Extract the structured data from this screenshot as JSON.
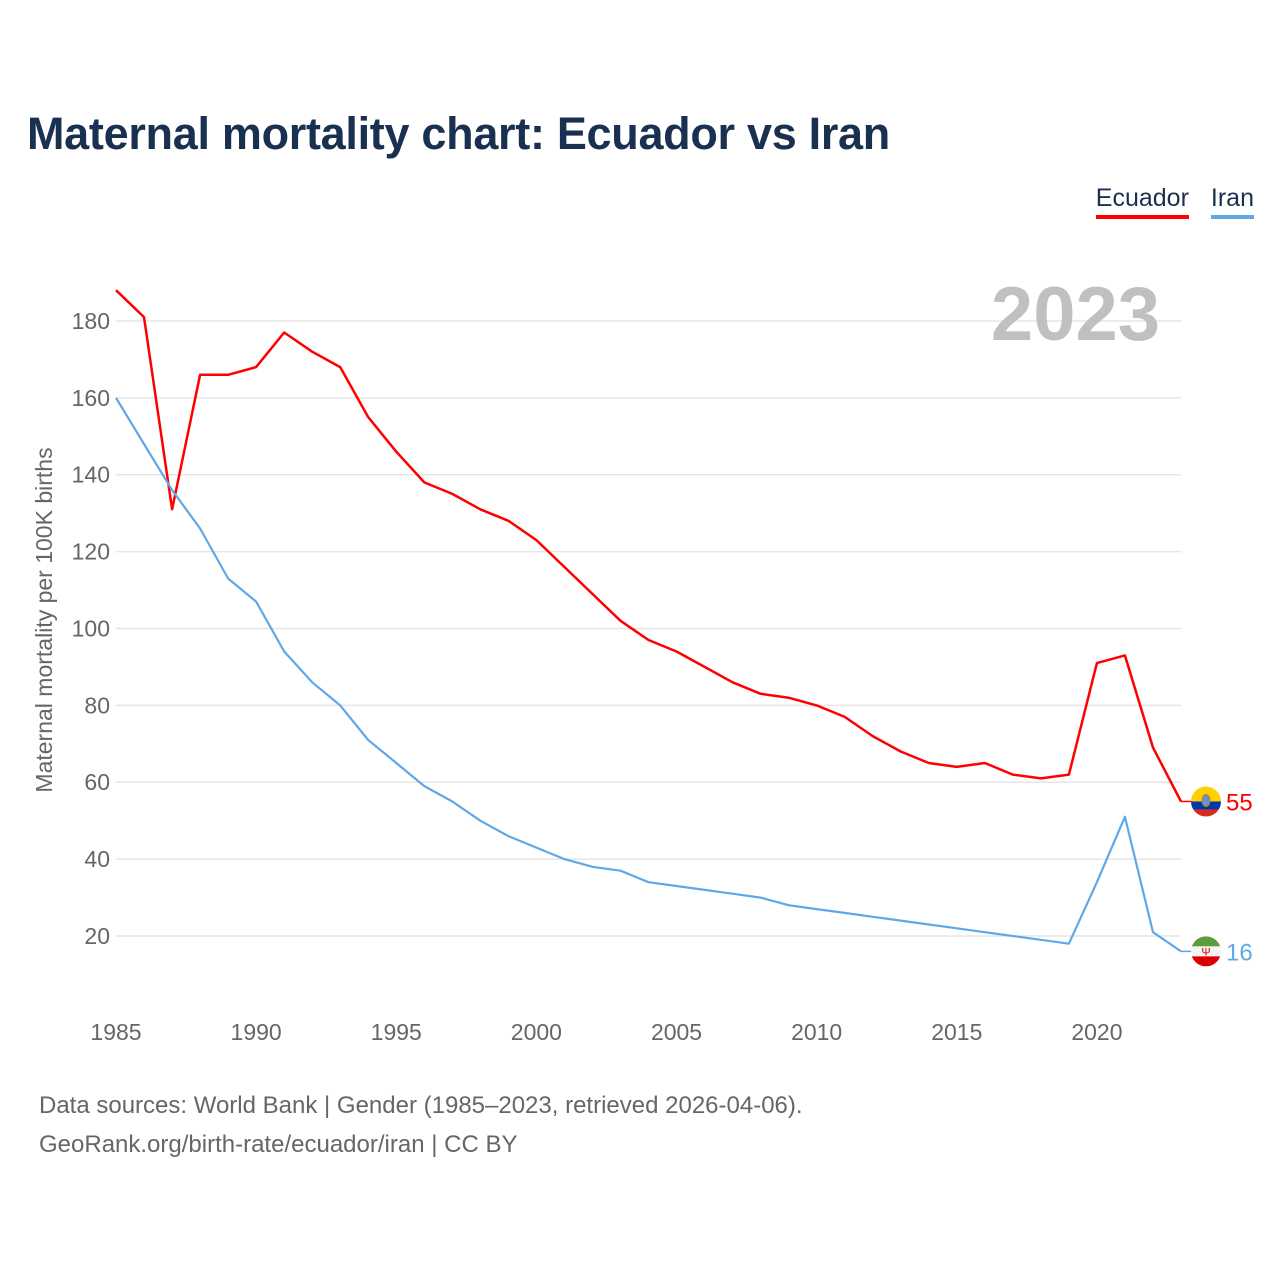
{
  "title": "Maternal mortality chart: Ecuador vs Iran",
  "year_label": "2023",
  "footer": {
    "line1": "Data sources: World Bank | Gender (1985–2023, retrieved 2026-04-06).",
    "line2": "GeoRank.org/birth-rate/ecuador/iran | CC BY"
  },
  "chart_data": {
    "type": "line",
    "title": "Maternal mortality chart: Ecuador vs Iran",
    "xlabel": "",
    "ylabel": "Maternal mortality per 100K births",
    "xlim": [
      1985,
      2023
    ],
    "ylim": [
      5,
      195
    ],
    "grid": true,
    "legend": "top-right",
    "x_ticks": [
      1985,
      1990,
      1995,
      2000,
      2005,
      2010,
      2015,
      2020
    ],
    "y_ticks": [
      20,
      40,
      60,
      80,
      100,
      120,
      140,
      160,
      180
    ],
    "x": [
      1985,
      1986,
      1987,
      1988,
      1989,
      1990,
      1991,
      1992,
      1993,
      1994,
      1995,
      1996,
      1997,
      1998,
      1999,
      2000,
      2001,
      2002,
      2003,
      2004,
      2005,
      2006,
      2007,
      2008,
      2009,
      2010,
      2011,
      2012,
      2013,
      2014,
      2015,
      2016,
      2017,
      2018,
      2019,
      2020,
      2021,
      2022,
      2023
    ],
    "series": [
      {
        "name": "Ecuador",
        "color": "#ff0000",
        "end_label": "55",
        "values": [
          188,
          181,
          131,
          166,
          166,
          168,
          177,
          172,
          168,
          155,
          146,
          138,
          135,
          131,
          128,
          123,
          116,
          109,
          102,
          97,
          94,
          90,
          86,
          83,
          82,
          80,
          77,
          72,
          68,
          65,
          64,
          65,
          62,
          61,
          62,
          91,
          93,
          69,
          55
        ]
      },
      {
        "name": "Iran",
        "color": "#5fa8e8",
        "end_label": "16",
        "values": [
          160,
          148,
          136,
          126,
          113,
          107,
          94,
          86,
          80,
          71,
          65,
          59,
          55,
          50,
          46,
          43,
          40,
          38,
          37,
          34,
          33,
          32,
          31,
          30,
          28,
          27,
          26,
          25,
          24,
          23,
          22,
          21,
          20,
          19,
          18,
          34,
          51,
          21,
          16
        ]
      }
    ]
  }
}
